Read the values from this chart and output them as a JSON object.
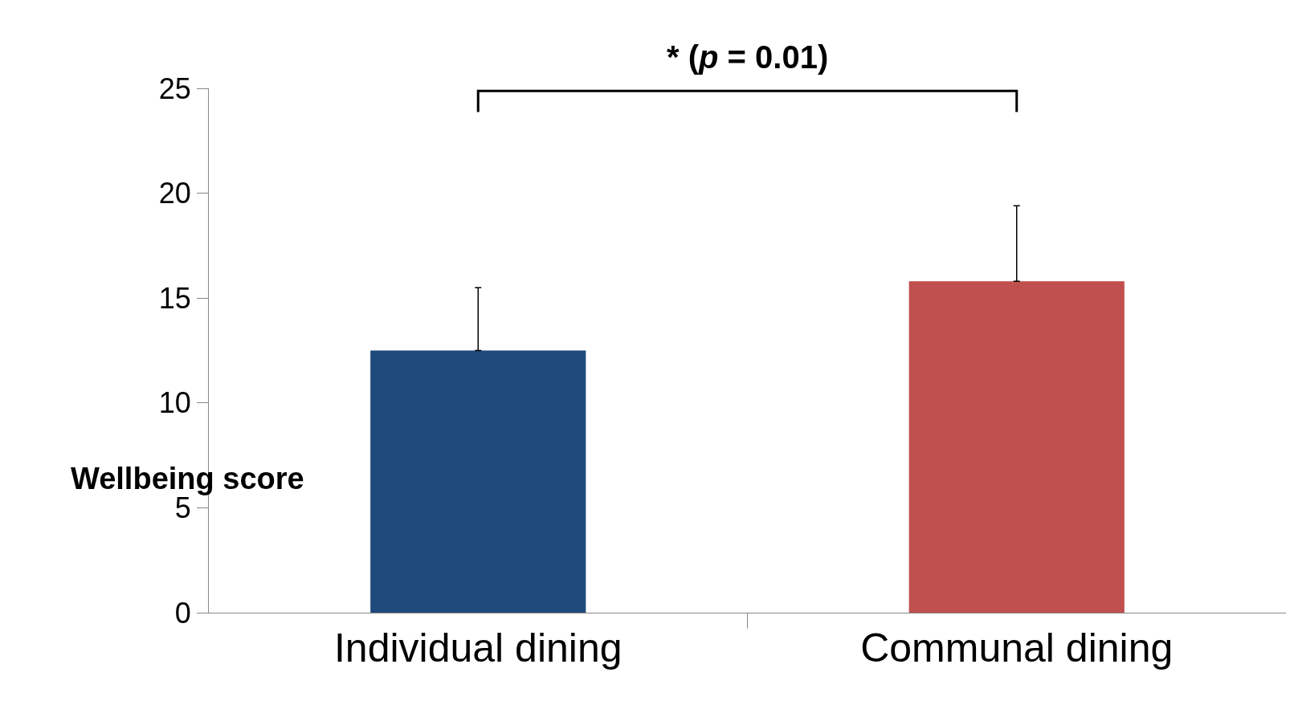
{
  "chart_data": {
    "type": "bar",
    "ylabel": "Wellbeing score",
    "categories": [
      "Individual dining",
      "Communal dining"
    ],
    "values": [
      12.5,
      15.8
    ],
    "colors": [
      "#214a7c",
      "#c0504d"
    ],
    "errors": [
      [
        12.5,
        15.5
      ],
      [
        15.8,
        19.4
      ]
    ],
    "ylim": [
      0,
      25
    ],
    "yticks": [
      0,
      5,
      10,
      15,
      20,
      25
    ],
    "grid": false,
    "annotations": [
      "* (p = 0.01)"
    ]
  }
}
